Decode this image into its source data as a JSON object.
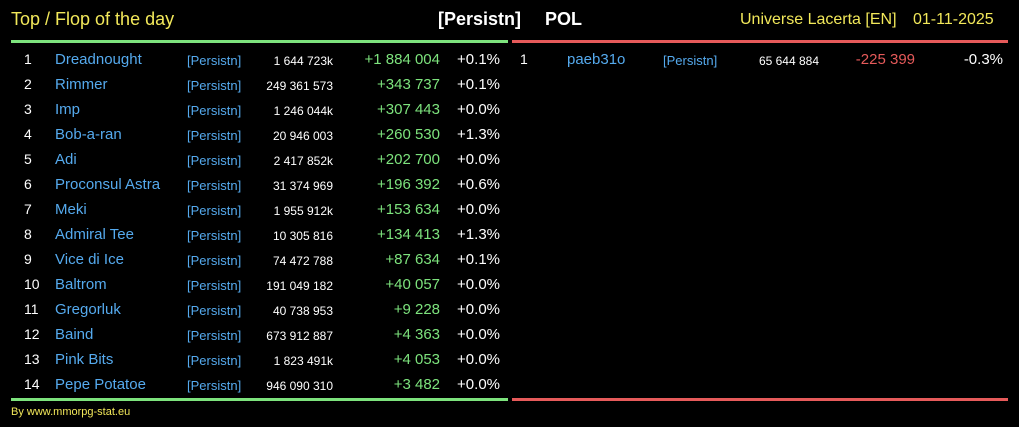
{
  "header": {
    "title": "Top / Flop of the day",
    "alliance": "[Persistn]",
    "server": "POL",
    "universe": "Universe Lacerta [EN]",
    "date": "01-11-2025"
  },
  "top": [
    {
      "rank": "1",
      "name": "Dreadnought",
      "ally": "[Persistn]",
      "points": "1 644 723k",
      "delta": "+1 884 004",
      "pct": "+0.1%"
    },
    {
      "rank": "2",
      "name": "Rimmer",
      "ally": "[Persistn]",
      "points": "249 361 573",
      "delta": "+343 737",
      "pct": "+0.1%"
    },
    {
      "rank": "3",
      "name": "Imp",
      "ally": "[Persistn]",
      "points": "1 246 044k",
      "delta": "+307 443",
      "pct": "+0.0%"
    },
    {
      "rank": "4",
      "name": "Bob-a-ran",
      "ally": "[Persistn]",
      "points": "20 946 003",
      "delta": "+260 530",
      "pct": "+1.3%"
    },
    {
      "rank": "5",
      "name": "Adi",
      "ally": "[Persistn]",
      "points": "2 417 852k",
      "delta": "+202 700",
      "pct": "+0.0%"
    },
    {
      "rank": "6",
      "name": "Proconsul Astra",
      "ally": "[Persistn]",
      "points": "31 374 969",
      "delta": "+196 392",
      "pct": "+0.6%"
    },
    {
      "rank": "7",
      "name": "Meki",
      "ally": "[Persistn]",
      "points": "1 955 912k",
      "delta": "+153 634",
      "pct": "+0.0%"
    },
    {
      "rank": "8",
      "name": "Admiral Tee",
      "ally": "[Persistn]",
      "points": "10 305 816",
      "delta": "+134 413",
      "pct": "+1.3%"
    },
    {
      "rank": "9",
      "name": "Vice di Ice",
      "ally": "[Persistn]",
      "points": "74 472 788",
      "delta": "+87 634",
      "pct": "+0.1%"
    },
    {
      "rank": "10",
      "name": "Baltrom",
      "ally": "[Persistn]",
      "points": "191 049 182",
      "delta": "+40 057",
      "pct": "+0.0%"
    },
    {
      "rank": "11",
      "name": "Gregorluk",
      "ally": "[Persistn]",
      "points": "40 738 953",
      "delta": "+9 228",
      "pct": "+0.0%"
    },
    {
      "rank": "12",
      "name": "Baind",
      "ally": "[Persistn]",
      "points": "673 912 887",
      "delta": "+4 363",
      "pct": "+0.0%"
    },
    {
      "rank": "13",
      "name": "Pink Bits",
      "ally": "[Persistn]",
      "points": "1 823 491k",
      "delta": "+4 053",
      "pct": "+0.0%"
    },
    {
      "rank": "14",
      "name": "Pepe Potatoe",
      "ally": "[Persistn]",
      "points": "946 090 310",
      "delta": "+3 482",
      "pct": "+0.0%"
    }
  ],
  "flop": [
    {
      "rank": "1",
      "name": "paeb31o",
      "ally": "[Persistn]",
      "points": "65 644 884",
      "delta": "-225 399",
      "pct": "-0.3%"
    }
  ],
  "footer": "By www.mmorpg-stat.eu",
  "colors": {
    "accent_yellow": "#f2e85a",
    "link_blue": "#55aaee",
    "gain_green": "#7de37d",
    "loss_red": "#e65a5a"
  }
}
